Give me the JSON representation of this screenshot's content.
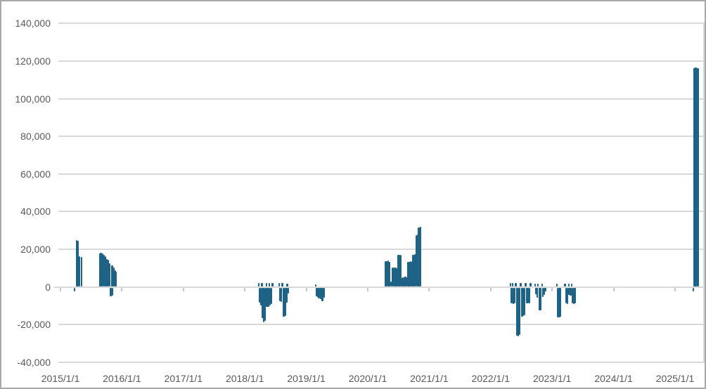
{
  "chart_data": {
    "type": "bar",
    "title": "",
    "xlabel": "",
    "ylabel": "",
    "legend": "none",
    "grid": "horizontal",
    "xlim": [
      "2015/1/1",
      "2025/1/1"
    ],
    "ylim": [
      -40000,
      140000
    ],
    "y_step": 20000,
    "y_ticks": [
      {
        "value": 140000,
        "label": "140,000"
      },
      {
        "value": 120000,
        "label": "120,000"
      },
      {
        "value": 100000,
        "label": "100,000"
      },
      {
        "value": 80000,
        "label": "80,000"
      },
      {
        "value": 60000,
        "label": "60,000"
      },
      {
        "value": 40000,
        "label": "40,000"
      },
      {
        "value": 20000,
        "label": "20,000"
      },
      {
        "value": 0,
        "label": "0"
      },
      {
        "value": -20000,
        "label": "-20,000"
      },
      {
        "value": -40000,
        "label": "-40,000"
      }
    ],
    "x_ticks": [
      {
        "year": 2015,
        "label": "2015/1/1"
      },
      {
        "year": 2016,
        "label": "2016/1/1"
      },
      {
        "year": 2017,
        "label": "2017/1/1"
      },
      {
        "year": 2018,
        "label": "2018/1/1"
      },
      {
        "year": 2019,
        "label": "2019/1/1"
      },
      {
        "year": 2020,
        "label": "2020/1/1"
      },
      {
        "year": 2021,
        "label": "2021/1/1"
      },
      {
        "year": 2022,
        "label": "2022/1/1"
      },
      {
        "year": 2023,
        "label": "2023/1/1"
      },
      {
        "year": 2024,
        "label": "2024/1/1"
      },
      {
        "year": 2025,
        "label": "2025/1/1"
      }
    ],
    "series_note": "single series of thin date bars, x = decimal year, v = value",
    "bars": [
      [
        2015.23,
        -2200
      ],
      [
        2015.26,
        24800
      ],
      [
        2015.28,
        24400
      ],
      [
        2015.31,
        16100
      ],
      [
        2015.34,
        15700
      ],
      [
        2015.64,
        17600
      ],
      [
        2015.66,
        18200
      ],
      [
        2015.69,
        17800
      ],
      [
        2015.71,
        17100
      ],
      [
        2015.73,
        16300
      ],
      [
        2015.75,
        14800
      ],
      [
        2015.78,
        14300
      ],
      [
        2015.8,
        12600
      ],
      [
        2015.82,
        -4700
      ],
      [
        2015.84,
        11200
      ],
      [
        2015.85,
        -4300
      ],
      [
        2015.87,
        10200
      ],
      [
        2015.89,
        8800
      ],
      [
        2015.9,
        7900
      ],
      [
        2018.23,
        2000
      ],
      [
        2018.24,
        -8100
      ],
      [
        2018.26,
        -9400
      ],
      [
        2018.28,
        2100
      ],
      [
        2018.29,
        -16200
      ],
      [
        2018.31,
        -18300
      ],
      [
        2018.33,
        -17600
      ],
      [
        2018.35,
        2000
      ],
      [
        2018.36,
        -10300
      ],
      [
        2018.38,
        -10100
      ],
      [
        2018.4,
        2100
      ],
      [
        2018.41,
        -9600
      ],
      [
        2018.43,
        -8900
      ],
      [
        2018.45,
        2000
      ],
      [
        2018.56,
        1900
      ],
      [
        2018.57,
        -7400
      ],
      [
        2018.59,
        -7600
      ],
      [
        2018.61,
        1900
      ],
      [
        2018.63,
        -15300
      ],
      [
        2018.64,
        -15500
      ],
      [
        2018.66,
        -15000
      ],
      [
        2018.68,
        -8200
      ],
      [
        2018.69,
        1800
      ],
      [
        2018.71,
        -3100
      ],
      [
        2019.15,
        1300
      ],
      [
        2019.17,
        -4600
      ],
      [
        2019.19,
        -5200
      ],
      [
        2019.2,
        -5600
      ],
      [
        2019.22,
        -5800
      ],
      [
        2019.24,
        -6000
      ],
      [
        2019.26,
        -7200
      ],
      [
        2019.27,
        -6600
      ],
      [
        2019.29,
        -5400
      ],
      [
        2020.29,
        13800
      ],
      [
        2020.31,
        13600
      ],
      [
        2020.33,
        13900
      ],
      [
        2020.35,
        13100
      ],
      [
        2020.38,
        2800
      ],
      [
        2020.4,
        10300
      ],
      [
        2020.42,
        10100
      ],
      [
        2020.45,
        10300
      ],
      [
        2020.47,
        9900
      ],
      [
        2020.49,
        17100
      ],
      [
        2020.51,
        16900
      ],
      [
        2020.54,
        17000
      ],
      [
        2020.56,
        4600
      ],
      [
        2020.58,
        5000
      ],
      [
        2020.61,
        5400
      ],
      [
        2020.63,
        5200
      ],
      [
        2020.65,
        13400
      ],
      [
        2020.67,
        13300
      ],
      [
        2020.7,
        13500
      ],
      [
        2020.72,
        13400
      ],
      [
        2020.74,
        17000
      ],
      [
        2020.77,
        17200
      ],
      [
        2020.79,
        27600
      ],
      [
        2020.81,
        27700
      ],
      [
        2020.83,
        31400
      ],
      [
        2020.86,
        31800
      ],
      [
        2022.32,
        2000
      ],
      [
        2022.34,
        -8400
      ],
      [
        2022.36,
        2100
      ],
      [
        2022.37,
        -8600
      ],
      [
        2022.39,
        -8400
      ],
      [
        2022.41,
        2000
      ],
      [
        2022.43,
        -25500
      ],
      [
        2022.45,
        -25800
      ],
      [
        2022.47,
        -25100
      ],
      [
        2022.49,
        2000
      ],
      [
        2022.51,
        -15300
      ],
      [
        2022.53,
        -15100
      ],
      [
        2022.55,
        -14800
      ],
      [
        2022.57,
        2000
      ],
      [
        2022.59,
        -8500
      ],
      [
        2022.61,
        -8300
      ],
      [
        2022.63,
        -8400
      ],
      [
        2022.65,
        1900
      ],
      [
        2022.72,
        1800
      ],
      [
        2022.74,
        -3500
      ],
      [
        2022.76,
        -5300
      ],
      [
        2022.77,
        1800
      ],
      [
        2022.79,
        -12200
      ],
      [
        2022.81,
        -12000
      ],
      [
        2022.84,
        1800
      ],
      [
        2022.85,
        -5100
      ],
      [
        2022.87,
        -4100
      ],
      [
        2022.89,
        -2100
      ],
      [
        2023.08,
        1600
      ],
      [
        2023.09,
        -15800
      ],
      [
        2023.12,
        -16000
      ],
      [
        2023.13,
        -15300
      ],
      [
        2023.21,
        1800
      ],
      [
        2023.23,
        -8400
      ],
      [
        2023.25,
        -8600
      ],
      [
        2023.27,
        1800
      ],
      [
        2023.28,
        -4100
      ],
      [
        2023.3,
        -4300
      ],
      [
        2023.32,
        1800
      ],
      [
        2023.33,
        -8400
      ],
      [
        2023.35,
        -8700
      ],
      [
        2023.37,
        -8300
      ],
      [
        2025.3,
        -1900
      ],
      [
        2025.31,
        116300,
        3
      ],
      [
        2025.34,
        116600,
        3
      ],
      [
        2025.37,
        116400,
        3
      ]
    ],
    "colors": {
      "bar": "#1e6385",
      "gridline": "#d9d9d9",
      "axis_labels": "#595959",
      "frame_border": "#a8a8a8",
      "background": "#ffffff"
    }
  }
}
